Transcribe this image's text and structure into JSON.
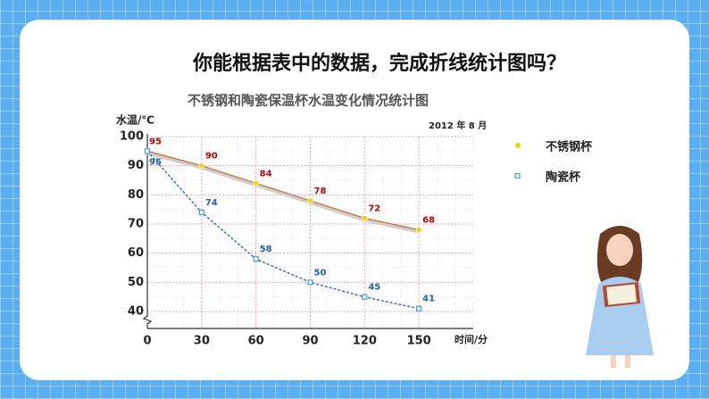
{
  "heading": "你能根据表中的数据，完成折线统计图吗？",
  "chart_data": {
    "type": "line",
    "title": "不锈钢和陶瓷保温杯水温变化情况统计图",
    "date_note": "2012 年 8 月",
    "y_label": "水温/℃",
    "x_label": "时间/分",
    "x": [
      0,
      30,
      60,
      90,
      120,
      150
    ],
    "xlim": [
      0,
      180
    ],
    "xticks": [
      0,
      30,
      60,
      90,
      120,
      150
    ],
    "ylim": [
      40,
      100
    ],
    "yticks": [
      40,
      50,
      60,
      70,
      80,
      90,
      100
    ],
    "grid": true,
    "legend": "right",
    "series": [
      {
        "name": "不锈钢杯",
        "color": "#d2773f",
        "marker_color": "#f2d600",
        "label_color": "#c00000",
        "marker": "circle",
        "dashed": false,
        "values": [
          95,
          90,
          84,
          78,
          72,
          68
        ]
      },
      {
        "name": "陶瓷杯",
        "color": "#2a6cc4",
        "marker_color": "#3aa0d8",
        "label_color": "#1f5fae",
        "marker": "square",
        "dashed": true,
        "values": [
          95,
          74,
          58,
          50,
          45,
          41
        ]
      }
    ]
  }
}
